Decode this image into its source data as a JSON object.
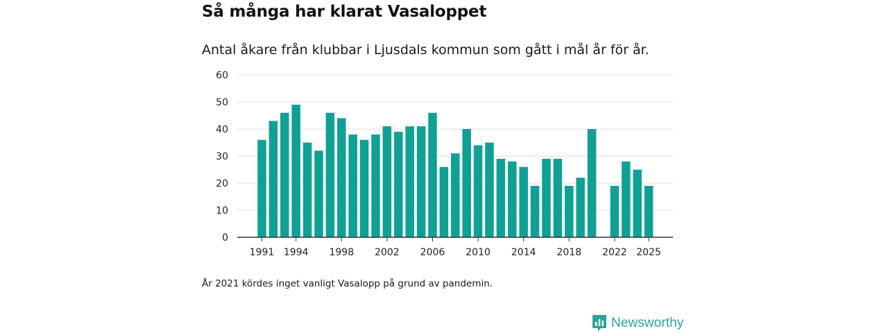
{
  "header": {
    "title": "Så många har klarat Vasaloppet",
    "subtitle": "Antal åkare från klubbar i Ljusdals kommun som gått i mål år för år."
  },
  "footer": {
    "note": "År 2021 kördes inget vanligt Vasalopp på grund av pandemin.",
    "brand": "Newsworthy"
  },
  "colors": {
    "bar": "#0fa193",
    "grid": "#dddddd",
    "axis": "#333333",
    "brand": "#30a399"
  },
  "chart_data": {
    "type": "bar",
    "title": "Så många har klarat Vasaloppet",
    "subtitle": "Antal åkare från klubbar i Ljusdals kommun som gått i mål år för år.",
    "xlabel": "",
    "ylabel": "",
    "ylim": [
      0,
      60
    ],
    "yticks": [
      0,
      10,
      20,
      30,
      40,
      50,
      60
    ],
    "xticks": [
      1991,
      1994,
      1998,
      2002,
      2006,
      2010,
      2014,
      2018,
      2022,
      2025
    ],
    "grid": true,
    "categories": [
      1991,
      1992,
      1993,
      1994,
      1995,
      1996,
      1997,
      1998,
      1999,
      2000,
      2001,
      2002,
      2003,
      2004,
      2005,
      2006,
      2007,
      2008,
      2009,
      2010,
      2011,
      2012,
      2013,
      2014,
      2015,
      2016,
      2017,
      2018,
      2019,
      2020,
      2021,
      2022,
      2023,
      2024,
      2025
    ],
    "values": [
      36,
      43,
      46,
      49,
      35,
      32,
      46,
      44,
      38,
      36,
      38,
      41,
      39,
      41,
      41,
      46,
      26,
      31,
      40,
      34,
      35,
      29,
      28,
      26,
      19,
      29,
      29,
      19,
      22,
      40,
      null,
      19,
      28,
      25,
      19
    ]
  }
}
